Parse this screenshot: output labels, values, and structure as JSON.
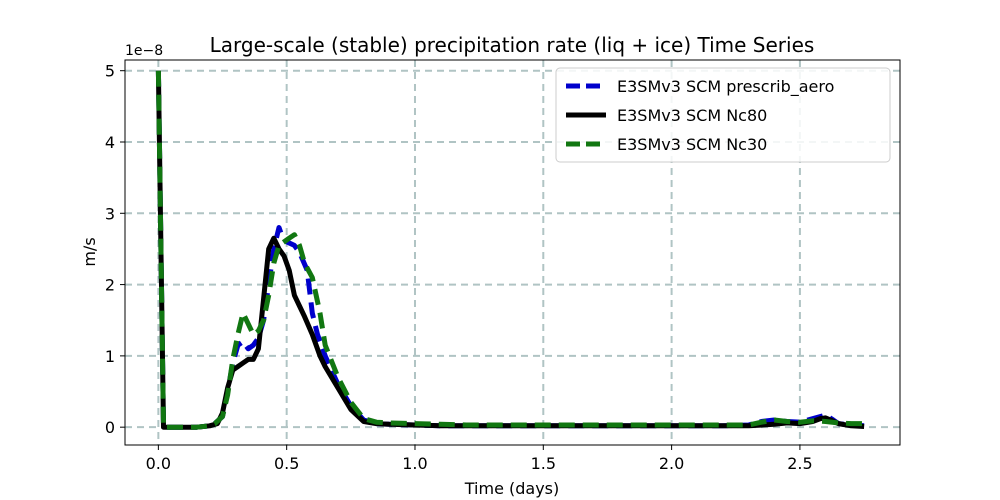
{
  "chart_data": {
    "type": "line",
    "title": "Large-scale (stable) precipitation rate (liq + ice) Time Series",
    "xlabel": "Time (days)",
    "ylabel": "m/s",
    "y_scale_label": "1e−8",
    "xlim": [
      -0.13,
      2.89
    ],
    "ylim": [
      -0.25,
      5.15
    ],
    "xticks": [
      0.0,
      0.5,
      1.0,
      1.5,
      2.0,
      2.5
    ],
    "xtick_labels": [
      "0.0",
      "0.5",
      "1.0",
      "1.5",
      "2.0",
      "2.5"
    ],
    "yticks": [
      0,
      1,
      2,
      3,
      4,
      5
    ],
    "ytick_labels": [
      "0",
      "1",
      "2",
      "3",
      "4",
      "5"
    ],
    "grid": true,
    "legend_position": "top-right",
    "series": [
      {
        "name": "E3SMv3 SCM prescrib_aero",
        "color": "#0000cc",
        "style": "dashed",
        "x": [
          0.0,
          0.02,
          0.05,
          0.1,
          0.15,
          0.2,
          0.22,
          0.25,
          0.27,
          0.29,
          0.31,
          0.33,
          0.35,
          0.37,
          0.39,
          0.41,
          0.43,
          0.45,
          0.47,
          0.48,
          0.5,
          0.53,
          0.55,
          0.58,
          0.6,
          0.62,
          0.65,
          0.7,
          0.75,
          0.8,
          0.85,
          0.9,
          1.0,
          1.1,
          1.2,
          1.3,
          1.4,
          1.5,
          1.6,
          1.7,
          1.8,
          1.9,
          2.0,
          2.1,
          2.2,
          2.3,
          2.35,
          2.4,
          2.45,
          2.5,
          2.55,
          2.58,
          2.6,
          2.63,
          2.65,
          2.7,
          2.75
        ],
        "values": [
          5.0,
          0.0,
          0.0,
          0.0,
          0.0,
          0.02,
          0.05,
          0.15,
          0.5,
          0.9,
          1.15,
          1.2,
          1.1,
          1.15,
          1.25,
          1.5,
          2.0,
          2.5,
          2.8,
          2.7,
          2.6,
          2.55,
          2.45,
          2.2,
          1.6,
          1.3,
          1.0,
          0.6,
          0.3,
          0.1,
          0.05,
          0.04,
          0.03,
          0.02,
          0.02,
          0.02,
          0.02,
          0.02,
          0.02,
          0.02,
          0.02,
          0.02,
          0.02,
          0.02,
          0.02,
          0.03,
          0.08,
          0.1,
          0.08,
          0.07,
          0.12,
          0.15,
          0.17,
          0.1,
          0.05,
          0.03,
          0.02
        ]
      },
      {
        "name": "E3SMv3 SCM Nc80",
        "color": "#000000",
        "style": "solid",
        "x": [
          0.0,
          0.02,
          0.05,
          0.1,
          0.15,
          0.2,
          0.23,
          0.25,
          0.27,
          0.29,
          0.31,
          0.33,
          0.35,
          0.37,
          0.39,
          0.41,
          0.43,
          0.45,
          0.47,
          0.49,
          0.51,
          0.53,
          0.55,
          0.57,
          0.6,
          0.63,
          0.65,
          0.7,
          0.75,
          0.8,
          0.85,
          0.9,
          1.0,
          1.1,
          1.2,
          1.3,
          1.4,
          1.5,
          1.6,
          1.7,
          1.8,
          1.9,
          2.0,
          2.1,
          2.2,
          2.3,
          2.4,
          2.45,
          2.5,
          2.55,
          2.58,
          2.6,
          2.62,
          2.65,
          2.7,
          2.75
        ],
        "values": [
          5.0,
          0.0,
          0.0,
          0.0,
          0.0,
          0.02,
          0.05,
          0.2,
          0.55,
          0.8,
          0.85,
          0.9,
          0.95,
          0.95,
          1.1,
          1.8,
          2.5,
          2.65,
          2.5,
          2.4,
          2.2,
          1.85,
          1.7,
          1.55,
          1.3,
          1.0,
          0.85,
          0.55,
          0.25,
          0.08,
          0.05,
          0.04,
          0.03,
          0.02,
          0.02,
          0.02,
          0.02,
          0.02,
          0.02,
          0.02,
          0.02,
          0.02,
          0.02,
          0.02,
          0.02,
          0.02,
          0.04,
          0.06,
          0.05,
          0.08,
          0.12,
          0.13,
          0.1,
          0.05,
          0.02,
          0.01
        ]
      },
      {
        "name": "E3SMv3 SCM Nc30",
        "color": "#117711",
        "style": "dashed",
        "x": [
          0.0,
          0.02,
          0.05,
          0.1,
          0.15,
          0.2,
          0.22,
          0.25,
          0.27,
          0.29,
          0.31,
          0.33,
          0.35,
          0.37,
          0.39,
          0.41,
          0.43,
          0.45,
          0.47,
          0.49,
          0.51,
          0.53,
          0.55,
          0.57,
          0.6,
          0.63,
          0.65,
          0.7,
          0.75,
          0.8,
          0.85,
          0.9,
          1.0,
          1.1,
          1.2,
          1.3,
          1.4,
          1.5,
          1.6,
          1.7,
          1.8,
          1.9,
          2.0,
          2.1,
          2.2,
          2.3,
          2.35,
          2.4,
          2.45,
          2.5,
          2.55,
          2.6,
          2.65,
          2.7,
          2.75
        ],
        "values": [
          5.0,
          0.0,
          0.0,
          0.0,
          0.0,
          0.02,
          0.05,
          0.15,
          0.45,
          0.95,
          1.3,
          1.6,
          1.45,
          1.3,
          1.35,
          1.5,
          1.85,
          2.3,
          2.55,
          2.6,
          2.65,
          2.7,
          2.55,
          2.3,
          2.1,
          1.6,
          1.15,
          0.7,
          0.35,
          0.12,
          0.07,
          0.06,
          0.05,
          0.04,
          0.03,
          0.03,
          0.03,
          0.03,
          0.03,
          0.03,
          0.03,
          0.03,
          0.03,
          0.03,
          0.03,
          0.03,
          0.07,
          0.1,
          0.08,
          0.07,
          0.09,
          0.08,
          0.06,
          0.05,
          0.05
        ]
      }
    ]
  }
}
